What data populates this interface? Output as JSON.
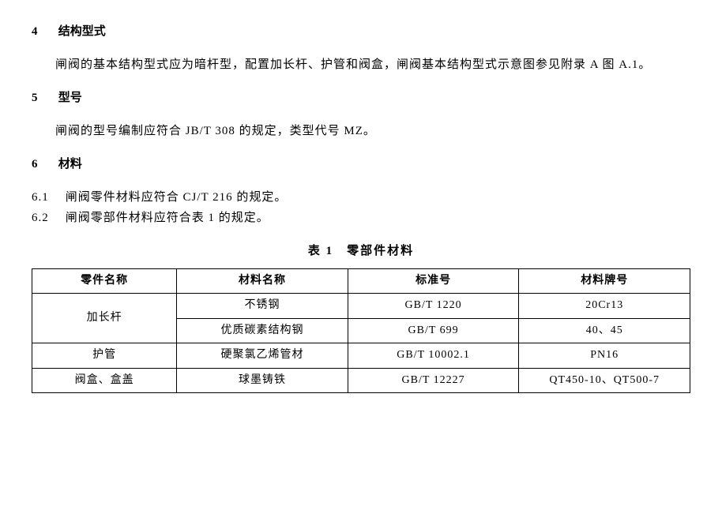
{
  "section4": {
    "num": "4",
    "title": "结构型式",
    "text": "闸阀的基本结构型式应为暗杆型，配置加长杆、护管和阀盒，闸阀基本结构型式示意图参见附录 A 图 A.1。"
  },
  "section5": {
    "num": "5",
    "title": "型号",
    "text": "闸阀的型号编制应符合 JB/T 308 的规定，类型代号 MZ。"
  },
  "section6": {
    "num": "6",
    "title": "材料",
    "clause61_num": "6.1",
    "clause61_text": "闸阀零件材料应符合 CJ/T 216 的规定。",
    "clause62_num": "6.2",
    "clause62_text": "闸阀零部件材料应符合表 1 的规定。"
  },
  "table": {
    "caption": "表 1　零部件材料",
    "columns": [
      "零件名称",
      "材料名称",
      "标准号",
      "材料牌号"
    ],
    "rows": [
      {
        "part": "加长杆",
        "part_rowspan": 2,
        "material": "不锈钢",
        "standard": "GB/T 1220",
        "grade": "20Cr13"
      },
      {
        "part": null,
        "material": "优质碳素结构钢",
        "standard": "GB/T 699",
        "grade": "40、45"
      },
      {
        "part": "护管",
        "part_rowspan": 1,
        "material": "硬聚氯乙烯管材",
        "standard": "GB/T 10002.1",
        "grade": "PN16"
      },
      {
        "part": "阀盒、盒盖",
        "part_rowspan": 1,
        "material": "球墨铸铁",
        "standard": "GB/T 12227",
        "grade": "QT450-10、QT500-7"
      }
    ]
  },
  "style": {
    "text_color": "#000000",
    "bg_color": "#ffffff",
    "border_color": "#000000",
    "body_fontsize": 15,
    "table_fontsize": 14
  }
}
